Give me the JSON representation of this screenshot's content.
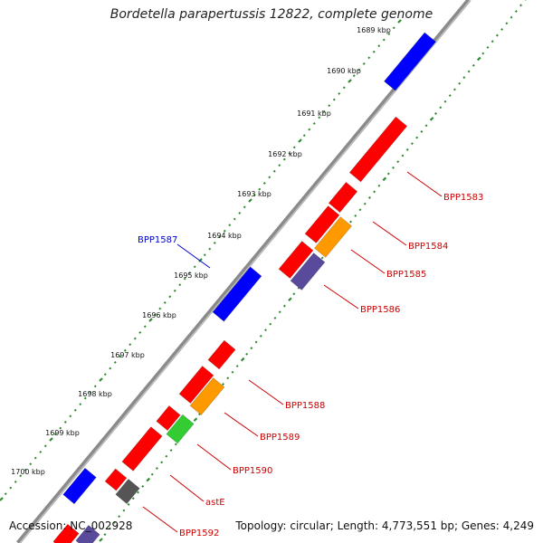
{
  "title": "Bordetella parapertussis 12822, complete genome",
  "footer": {
    "accession": "Accession: NC_002928",
    "stats": "Topology: circular; Length: 4,773,551 bp; Genes: 4,249"
  },
  "colors": {
    "backbone": "#888888",
    "tick_minor": "#2e8b2e",
    "red": "#ff0000",
    "blue": "#0000ff",
    "orange": "#ff9900",
    "purple": "#5a4a9c",
    "green": "#33cc33",
    "gray": "#555555",
    "label_red": "#cc0000",
    "label_blue": "#0000cc"
  },
  "scale_labels": [
    "1689 kbp",
    "1690 kbp",
    "1691 kbp",
    "1692 kbp",
    "1693 kbp",
    "1694 kbp",
    "1695 kbp",
    "1696 kbp",
    "1697 kbp",
    "1698 kbp",
    "1699 kbp",
    "1700 kbp"
  ],
  "gene_labels": [
    {
      "text": "BPP1583",
      "color": "red"
    },
    {
      "text": "BPP1584",
      "color": "red"
    },
    {
      "text": "BPP1585",
      "color": "red"
    },
    {
      "text": "BPP1586",
      "color": "red"
    },
    {
      "text": "BPP1587",
      "color": "blue"
    },
    {
      "text": "BPP1588",
      "color": "red"
    },
    {
      "text": "BPP1589",
      "color": "red"
    },
    {
      "text": "BPP1590",
      "color": "red"
    },
    {
      "text": "astE",
      "color": "red"
    },
    {
      "text": "BPP1592",
      "color": "red"
    }
  ]
}
